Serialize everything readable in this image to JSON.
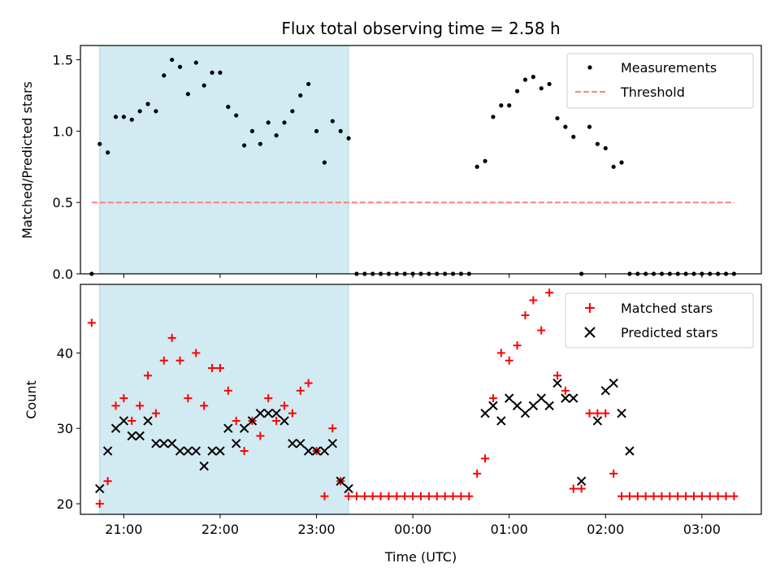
{
  "chart_data": [
    {
      "type": "scatter",
      "title": "Flux total observing time = 2.58 h",
      "xlabel": "",
      "ylabel": "Matched/Predicted stars",
      "xlim": [
        "20:33",
        "03:37"
      ],
      "ylim": [
        0,
        1.6
      ],
      "yticks": [
        0.0,
        0.5,
        1.0,
        1.5
      ],
      "ytick_labels": [
        "0.0",
        "0.5",
        "1.0",
        "1.5"
      ],
      "xticks": [
        "21:00",
        "22:00",
        "23:00",
        "00:00",
        "01:00",
        "02:00",
        "03:00"
      ],
      "legend_position": "top-right",
      "shaded_region": {
        "start": "20:45",
        "end": "23:20",
        "color": "#add8e6"
      },
      "series": [
        {
          "name": "Measurements",
          "style": "dot",
          "color": "#000000",
          "x": [
            "20:40",
            "20:45",
            "20:50",
            "20:55",
            "21:00",
            "21:05",
            "21:10",
            "21:15",
            "21:20",
            "21:25",
            "21:30",
            "21:35",
            "21:40",
            "21:45",
            "21:50",
            "21:55",
            "22:00",
            "22:05",
            "22:10",
            "22:15",
            "22:20",
            "22:25",
            "22:30",
            "22:35",
            "22:40",
            "22:45",
            "22:50",
            "22:55",
            "23:00",
            "23:05",
            "23:10",
            "23:15",
            "23:20",
            "23:25",
            "23:30",
            "23:35",
            "23:40",
            "23:45",
            "23:50",
            "23:55",
            "00:00",
            "00:05",
            "00:10",
            "00:15",
            "00:20",
            "00:25",
            "00:30",
            "00:35",
            "00:40",
            "00:45",
            "00:50",
            "00:55",
            "01:00",
            "01:05",
            "01:10",
            "01:15",
            "01:20",
            "01:25",
            "01:30",
            "01:35",
            "01:40",
            "01:45",
            "01:50",
            "01:55",
            "02:00",
            "02:05",
            "02:10",
            "02:15",
            "02:20",
            "02:25",
            "02:30",
            "02:35",
            "02:40",
            "02:45",
            "02:50",
            "02:55",
            "03:00",
            "03:05",
            "03:10",
            "03:15",
            "03:20"
          ],
          "y": [
            0.0,
            0.91,
            0.85,
            1.1,
            1.1,
            1.08,
            1.14,
            1.19,
            1.14,
            1.39,
            1.5,
            1.45,
            1.26,
            1.48,
            1.32,
            1.41,
            1.41,
            1.17,
            1.11,
            0.9,
            1.0,
            0.91,
            1.06,
            0.97,
            1.06,
            1.14,
            1.25,
            1.33,
            1.0,
            0.78,
            1.07,
            1.0,
            0.95,
            0.0,
            0.0,
            0.0,
            0.0,
            0.0,
            0.0,
            0.0,
            0.0,
            0.0,
            0.0,
            0.0,
            0.0,
            0.0,
            0.0,
            0.0,
            0.75,
            0.79,
            1.1,
            1.18,
            1.18,
            1.28,
            1.36,
            1.38,
            1.3,
            1.33,
            1.09,
            1.03,
            0.96,
            0.0,
            1.03,
            0.91,
            0.88,
            0.75,
            0.78,
            0.0,
            0.0,
            0.0,
            0.0,
            0.0,
            0.0,
            0.0,
            0.0,
            0.0,
            0.0,
            0.0,
            0.0,
            0.0,
            0.0
          ]
        },
        {
          "name": "Threshold",
          "style": "dashed",
          "color": "#ff7f7f",
          "x": [
            "20:40",
            "03:20"
          ],
          "y": [
            0.5,
            0.5
          ]
        }
      ]
    },
    {
      "type": "scatter",
      "title": "",
      "xlabel": "Time (UTC)",
      "ylabel": "Count",
      "xlim": [
        "20:33",
        "03:37"
      ],
      "ylim": [
        18.6,
        49.1
      ],
      "yticks": [
        20,
        30,
        40
      ],
      "ytick_labels": [
        "20",
        "30",
        "40"
      ],
      "xticks": [
        "21:00",
        "22:00",
        "23:00",
        "00:00",
        "01:00",
        "02:00",
        "03:00"
      ],
      "legend_position": "top-right",
      "shaded_region": {
        "start": "20:45",
        "end": "23:20",
        "color": "#add8e6"
      },
      "series": [
        {
          "name": "Matched stars",
          "style": "plus",
          "color": "#ff0000",
          "x": [
            "20:40",
            "20:45",
            "20:50",
            "20:55",
            "21:00",
            "21:05",
            "21:10",
            "21:15",
            "21:20",
            "21:25",
            "21:30",
            "21:35",
            "21:40",
            "21:45",
            "21:50",
            "21:55",
            "22:00",
            "22:05",
            "22:10",
            "22:15",
            "22:20",
            "22:25",
            "22:30",
            "22:35",
            "22:40",
            "22:45",
            "22:50",
            "22:55",
            "23:00",
            "23:05",
            "23:10",
            "23:15",
            "23:20",
            "23:25",
            "23:30",
            "23:35",
            "23:40",
            "23:45",
            "23:50",
            "23:55",
            "00:00",
            "00:05",
            "00:10",
            "00:15",
            "00:20",
            "00:25",
            "00:30",
            "00:35",
            "00:40",
            "00:45",
            "00:50",
            "00:55",
            "01:00",
            "01:05",
            "01:10",
            "01:15",
            "01:20",
            "01:25",
            "01:30",
            "01:35",
            "01:40",
            "01:45",
            "01:50",
            "01:55",
            "02:00",
            "02:05",
            "02:10",
            "02:15",
            "02:20",
            "02:25",
            "02:30",
            "02:35",
            "02:40",
            "02:45",
            "02:50",
            "02:55",
            "03:00",
            "03:05",
            "03:10",
            "03:15",
            "03:20"
          ],
          "y": [
            44,
            20,
            23,
            33,
            34,
            31,
            33,
            37,
            32,
            39,
            42,
            39,
            34,
            40,
            33,
            38,
            38,
            35,
            31,
            27,
            31,
            29,
            34,
            31,
            33,
            32,
            35,
            36,
            27,
            21,
            30,
            23,
            21,
            21,
            21,
            21,
            21,
            21,
            21,
            21,
            21,
            21,
            21,
            21,
            21,
            21,
            21,
            21,
            24,
            26,
            34,
            40,
            39,
            41,
            45,
            47,
            43,
            48,
            37,
            35,
            22,
            22,
            32,
            32,
            32,
            24,
            21,
            21,
            21,
            21,
            21,
            21,
            21,
            21,
            21,
            21,
            21,
            21,
            21,
            21,
            21
          ]
        },
        {
          "name": "Predicted stars",
          "style": "x",
          "color": "#000000",
          "x": [
            "20:45",
            "20:50",
            "20:55",
            "21:00",
            "21:05",
            "21:10",
            "21:15",
            "21:20",
            "21:25",
            "21:30",
            "21:35",
            "21:40",
            "21:45",
            "21:50",
            "21:55",
            "22:00",
            "22:05",
            "22:10",
            "22:15",
            "22:20",
            "22:25",
            "22:30",
            "22:35",
            "22:40",
            "22:45",
            "22:50",
            "22:55",
            "23:00",
            "23:05",
            "23:10",
            "23:15",
            "23:20",
            "00:45",
            "00:50",
            "00:55",
            "01:00",
            "01:05",
            "01:10",
            "01:15",
            "01:20",
            "01:25",
            "01:30",
            "01:35",
            "01:40",
            "01:45",
            "01:55",
            "02:00",
            "02:05",
            "02:10",
            "02:15"
          ],
          "y": [
            22,
            27,
            30,
            31,
            29,
            29,
            31,
            28,
            28,
            28,
            27,
            27,
            27,
            25,
            27,
            27,
            30,
            28,
            30,
            31,
            32,
            32,
            32,
            31,
            28,
            28,
            27,
            27,
            27,
            28,
            23,
            22,
            32,
            33,
            31,
            34,
            33,
            32,
            33,
            34,
            33,
            36,
            34,
            34,
            23,
            31,
            35,
            36,
            32,
            27
          ]
        }
      ]
    }
  ]
}
